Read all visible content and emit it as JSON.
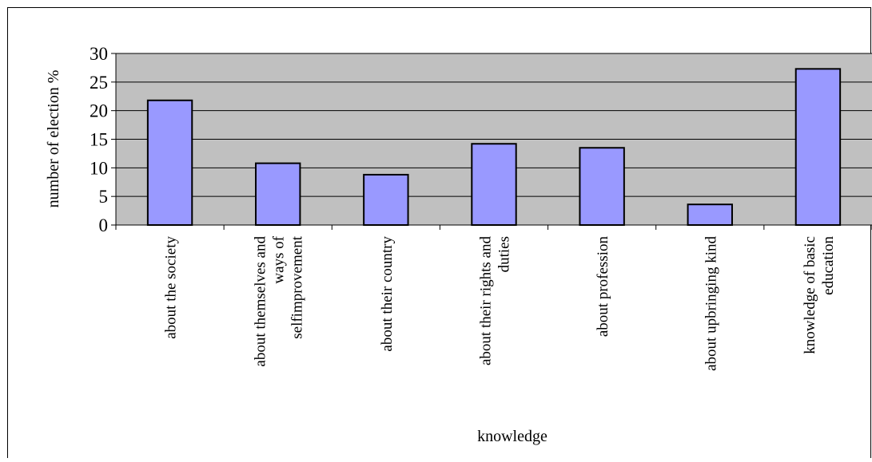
{
  "chart_data": {
    "type": "bar",
    "categories": [
      [
        "about the society"
      ],
      [
        "about themselves and",
        "ways of",
        "selfimprovement"
      ],
      [
        "about their country"
      ],
      [
        "about their rights and",
        "duties"
      ],
      [
        "about profession"
      ],
      [
        "about upbringing kind"
      ],
      [
        "knowledge of basic",
        "education"
      ]
    ],
    "values": [
      21.8,
      10.8,
      8.8,
      14.2,
      13.5,
      3.6,
      27.3
    ],
    "xlabel": "knowledge",
    "ylabel": "number of election %",
    "ylim": [
      0,
      30
    ],
    "yticks": [
      0,
      5,
      10,
      15,
      20,
      25,
      30
    ],
    "grid": true,
    "legend": "none",
    "colors": {
      "plot_background": "#c0c0c0",
      "bar_fill": "#9999ff",
      "bar_stroke": "#000000",
      "gridline": "#000000"
    }
  }
}
